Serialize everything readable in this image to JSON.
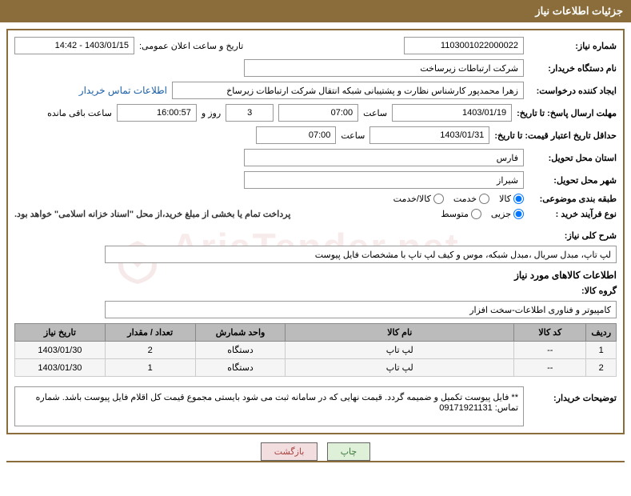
{
  "header": {
    "title": "جزئیات اطلاعات نیاز"
  },
  "labels": {
    "need_no": "شماره نیاز:",
    "announce_dt": "تاریخ و ساعت اعلان عمومی:",
    "buyer_org": "نام دستگاه خریدار:",
    "requester": "ایجاد کننده درخواست:",
    "deadline": "مهلت ارسال پاسخ: تا تاریخ:",
    "hour": "ساعت",
    "day_and": "روز و",
    "remaining": "ساعت باقی مانده",
    "min_validity": "حداقل تاریخ اعتبار قیمت: تا تاریخ:",
    "delivery_state": "استان محل تحویل:",
    "delivery_city": "شهر محل تحویل:",
    "subject_class": "طبقه بندی موضوعی:",
    "purchase_type": "نوع فرآیند خرید :",
    "need_desc": "شرح کلی نیاز:",
    "goods_info": "اطلاعات کالاهای مورد نیاز",
    "goods_group": "گروه کالا:",
    "buyer_notes": "توضیحات خریدار:",
    "contact_link": "اطلاعات تماس خریدار"
  },
  "values": {
    "need_no": "1103001022000022",
    "announce_dt": "1403/01/15 - 14:42",
    "buyer_org": "شرکت ارتباطات زیرساخت",
    "requester": "زهرا محمدپور کارشناس نظارت و پشتیبانی شبکه انتقال شرکت ارتباطات زیرساخ",
    "deadline_date": "1403/01/19",
    "deadline_hour": "07:00",
    "remaining_days": "3",
    "remaining_time": "16:00:57",
    "validity_date": "1403/01/31",
    "validity_hour": "07:00",
    "delivery_state": "فارس",
    "delivery_city": "شیراز",
    "need_desc": "لپ تاپ، مبدل سریال ،مبدل شبکه، موس و کیف لپ تاپ با مشخصات فایل پیوست",
    "goods_group": "کامپیوتر و فناوری اطلاعات-سخت افزار",
    "buyer_notes": "** فایل پیوست تکمیل و ضمیمه گردد. قیمت نهایی که در سامانه ثبت می شود بایستی مجموع قیمت کل اقلام فایل پیوست باشد. شماره تماس: 09171921131",
    "pay_note": "پرداخت تمام یا بخشی از مبلغ خرید،از محل \"اسناد خزانه اسلامی\" خواهد بود."
  },
  "radios": {
    "subject": {
      "opts": [
        "کالا",
        "خدمت",
        "کالا/خدمت"
      ],
      "selected": 0
    },
    "purchase": {
      "opts": [
        "جزیی",
        "متوسط"
      ],
      "selected": 0
    }
  },
  "table": {
    "headers": [
      "ردیف",
      "کد کالا",
      "نام کالا",
      "واحد شمارش",
      "تعداد / مقدار",
      "تاریخ نیاز"
    ],
    "rows": [
      [
        "1",
        "--",
        "لپ تاپ",
        "دستگاه",
        "2",
        "1403/01/30"
      ],
      [
        "2",
        "--",
        "لپ تاپ",
        "دستگاه",
        "1",
        "1403/01/30"
      ]
    ]
  },
  "buttons": {
    "print": "چاپ",
    "back": "بازگشت"
  },
  "watermark": "AriaTender.net"
}
